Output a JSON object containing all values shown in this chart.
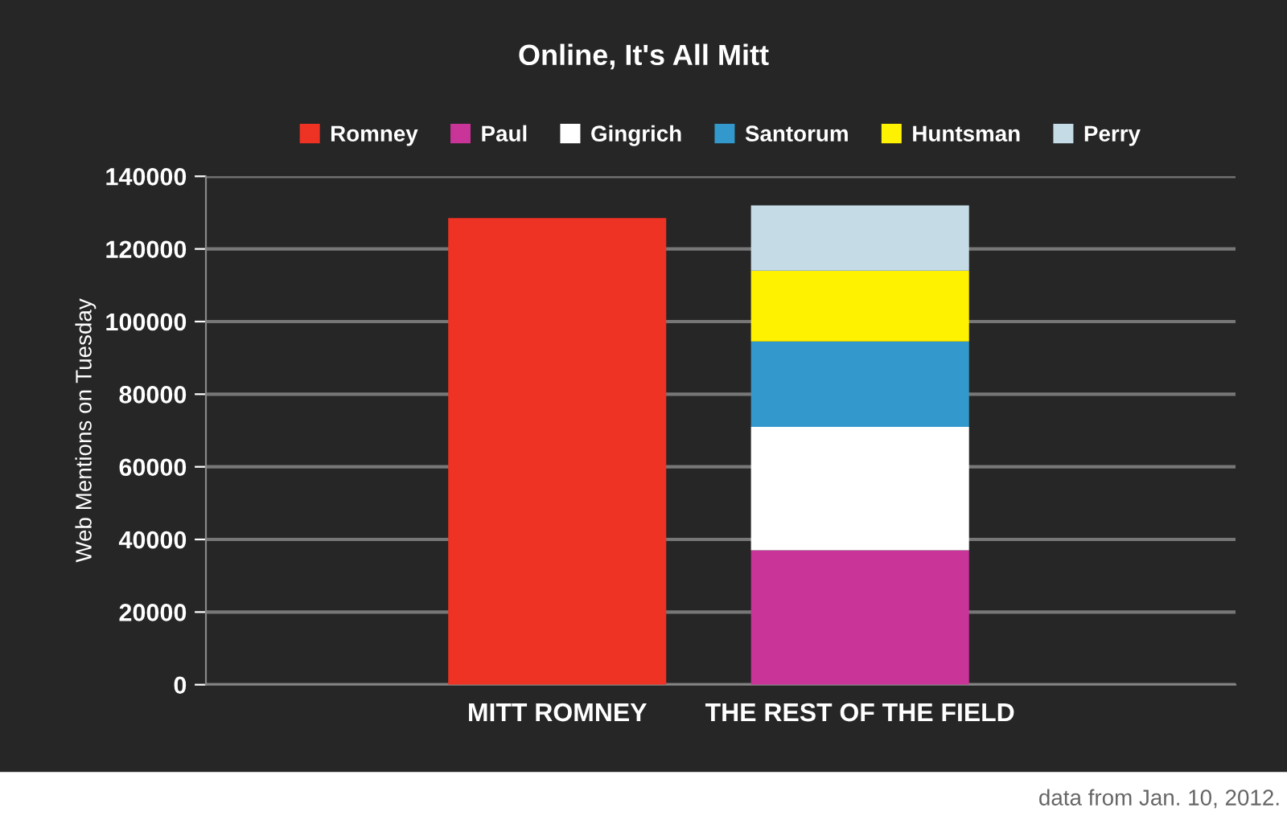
{
  "chart_data": {
    "type": "bar",
    "title": "Online, It's All Mitt",
    "ylabel": "Web Mentions on Tuesday",
    "categories": [
      "MITT ROMNEY",
      "THE REST OF THE FIELD"
    ],
    "series": [
      {
        "name": "Romney",
        "color": "#ee3224",
        "values": [
          128500,
          null
        ]
      },
      {
        "name": "Paul",
        "color": "#c83497",
        "values": [
          null,
          37000
        ]
      },
      {
        "name": "Gingrich",
        "color": "#ffffff",
        "values": [
          null,
          34000
        ]
      },
      {
        "name": "Santorum",
        "color": "#3399cc",
        "values": [
          null,
          23500
        ]
      },
      {
        "name": "Huntsman",
        "color": "#fff200",
        "values": [
          null,
          19500
        ]
      },
      {
        "name": "Perry",
        "color": "#c5dce6",
        "values": [
          null,
          18000
        ]
      }
    ],
    "stacked": true,
    "ylim": [
      0,
      140000
    ],
    "yticks": [
      0,
      20000,
      40000,
      60000,
      80000,
      100000,
      120000,
      140000
    ],
    "grid": "y",
    "legend": "top",
    "annotations": [
      "data from Jan. 10, 2012."
    ]
  }
}
